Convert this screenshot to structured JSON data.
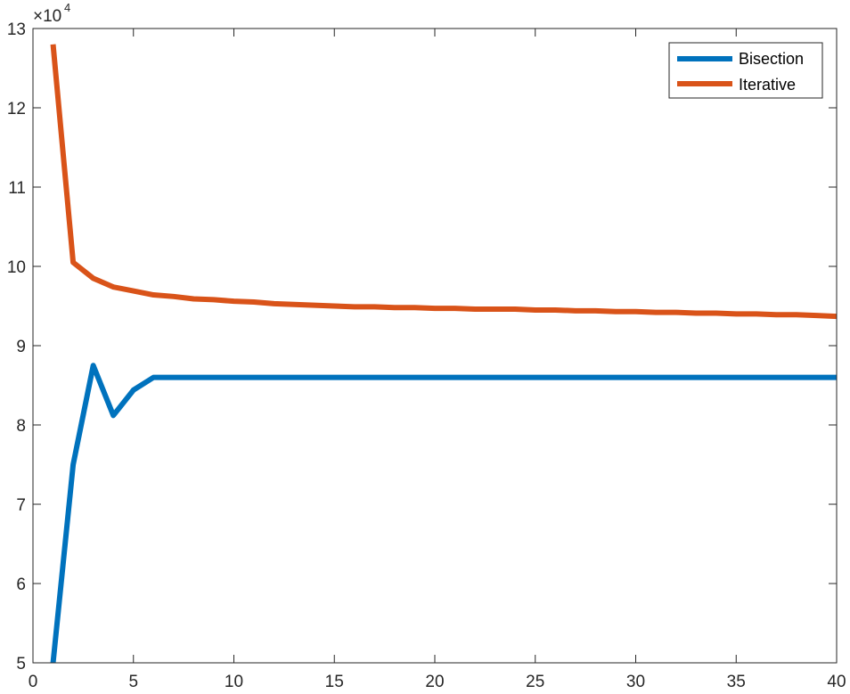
{
  "chart_data": {
    "type": "line",
    "title": "",
    "xlabel": "",
    "ylabel": "",
    "xlim": [
      0,
      40
    ],
    "ylim": [
      5,
      13
    ],
    "y_multiplier": {
      "base": "×10",
      "exponent": "4"
    },
    "x_ticks": [
      0,
      5,
      10,
      15,
      20,
      25,
      30,
      35,
      40
    ],
    "x_tick_labels": [
      "0",
      "5",
      "10",
      "15",
      "20",
      "25",
      "30",
      "35",
      "40"
    ],
    "y_ticks": [
      5,
      6,
      7,
      8,
      9,
      10,
      11,
      12,
      13
    ],
    "y_tick_labels": [
      "5",
      "6",
      "7",
      "8",
      "9",
      "10",
      "11",
      "12",
      "13"
    ],
    "grid": false,
    "legend_position": "top-right",
    "series": [
      {
        "name": "Bisection",
        "color": "#0072BD",
        "x": [
          1,
          2,
          3,
          4,
          5,
          6,
          7,
          8,
          9,
          10,
          11,
          12,
          13,
          14,
          15,
          16,
          17,
          18,
          19,
          20,
          21,
          22,
          23,
          24,
          25,
          26,
          27,
          28,
          29,
          30,
          31,
          32,
          33,
          34,
          35,
          36,
          37,
          38,
          39,
          40
        ],
        "y": [
          5.0,
          7.5,
          8.75,
          8.12,
          8.44,
          8.6,
          8.6,
          8.6,
          8.6,
          8.6,
          8.6,
          8.6,
          8.6,
          8.6,
          8.6,
          8.6,
          8.6,
          8.6,
          8.6,
          8.6,
          8.6,
          8.6,
          8.6,
          8.6,
          8.6,
          8.6,
          8.6,
          8.6,
          8.6,
          8.6,
          8.6,
          8.6,
          8.6,
          8.6,
          8.6,
          8.6,
          8.6,
          8.6,
          8.6,
          8.6
        ]
      },
      {
        "name": "Iterative",
        "color": "#D95319",
        "x": [
          1,
          2,
          3,
          4,
          5,
          6,
          7,
          8,
          9,
          10,
          11,
          12,
          13,
          14,
          15,
          16,
          17,
          18,
          19,
          20,
          21,
          22,
          23,
          24,
          25,
          26,
          27,
          28,
          29,
          30,
          31,
          32,
          33,
          34,
          35,
          36,
          37,
          38,
          39,
          40
        ],
        "y": [
          12.8,
          10.05,
          9.85,
          9.74,
          9.69,
          9.64,
          9.62,
          9.59,
          9.58,
          9.56,
          9.55,
          9.53,
          9.52,
          9.51,
          9.5,
          9.49,
          9.49,
          9.48,
          9.48,
          9.47,
          9.47,
          9.46,
          9.46,
          9.46,
          9.45,
          9.45,
          9.44,
          9.44,
          9.43,
          9.43,
          9.42,
          9.42,
          9.41,
          9.41,
          9.4,
          9.4,
          9.39,
          9.39,
          9.38,
          9.37
        ]
      }
    ]
  }
}
